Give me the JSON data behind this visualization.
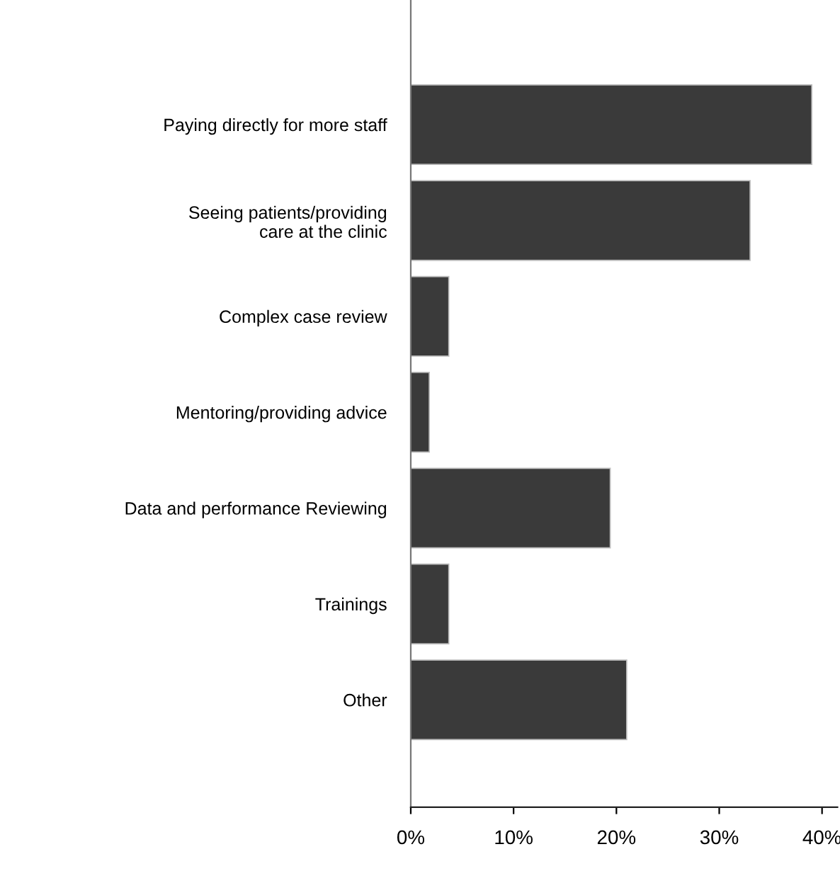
{
  "chart_data": {
    "type": "bar",
    "orientation": "horizontal",
    "categories": [
      "Paying directly for more staff",
      "Seeing patients/providing\ncare at the clinic",
      "Complex case review",
      "Mentoring/providing advice",
      "Data and performance Reviewing",
      "Trainings",
      "Other"
    ],
    "values": [
      39,
      33,
      3.7,
      1.8,
      19.4,
      3.7,
      21
    ],
    "color": "#3a3a3a",
    "xlim": [
      0,
      41.5
    ],
    "xticks": [
      {
        "value": 0,
        "label": "0%"
      },
      {
        "value": 10,
        "label": "10%"
      },
      {
        "value": 20,
        "label": "20%"
      },
      {
        "value": 30,
        "label": "30%"
      },
      {
        "value": 40,
        "label": "40%"
      }
    ],
    "grid": false,
    "legend": false
  }
}
